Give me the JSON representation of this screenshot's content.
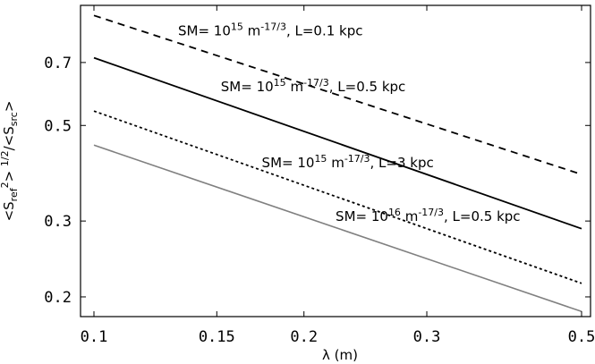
{
  "chart_data": {
    "type": "line",
    "xlabel": "λ (m)",
    "ylabel_parts": {
      "open1": "<S",
      "sub1": "ref",
      "sup1": "2",
      "mid": "> ",
      "sup2": "1/2",
      "open2": "/<S",
      "sub2": "src",
      "close": ">"
    },
    "x_scale": "log",
    "y_scale": "log",
    "xlim": [
      0.1,
      0.5
    ],
    "ylim": [
      0.18,
      0.95
    ],
    "x_ticks": [
      0.1,
      0.15,
      0.2,
      0.3,
      0.5
    ],
    "x_tick_labels": [
      "0.1",
      "0.15",
      "0.2",
      "0.3",
      "0.5"
    ],
    "y_ticks": [
      0.2,
      0.3,
      0.5,
      0.7
    ],
    "y_tick_labels": [
      "0.2",
      "0.3",
      "0.5",
      "0.7"
    ],
    "grid": false,
    "series": [
      {
        "x": [
          0.1,
          0.5
        ],
        "y": [
          0.9,
          0.385
        ],
        "color": "#000000",
        "dash": "8,6",
        "annotation": {
          "pre": "SM= 10",
          "sup1": "15",
          "mid": " m",
          "sup2": "-17/3",
          "post": ", L=0.1 kpc",
          "x": 0.132,
          "y": 0.81
        }
      },
      {
        "x": [
          0.1,
          0.5
        ],
        "y": [
          0.718,
          0.288
        ],
        "color": "#000000",
        "dash": "",
        "annotation": {
          "pre": "SM= 10",
          "sup1": "15",
          "mid": " m",
          "sup2": "-17/3",
          "post": ", L=0.5 kpc",
          "x": 0.152,
          "y": 0.6
        }
      },
      {
        "x": [
          0.1,
          0.5
        ],
        "y": [
          0.54,
          0.215
        ],
        "color": "#000000",
        "dash": "3,3",
        "annotation": {
          "pre": "SM= 10",
          "sup1": "15",
          "mid": " m",
          "sup2": "-17/3",
          "post": ", L=3 kpc",
          "x": 0.174,
          "y": 0.4
        }
      },
      {
        "x": [
          0.1,
          0.5
        ],
        "y": [
          0.45,
          0.185
        ],
        "color": "#808080",
        "dash": "",
        "annotation": {
          "pre": "SM= 10",
          "sup1": "16",
          "mid": " m",
          "sup2": "-17/3",
          "post": ", L=0.5 kpc",
          "x": 0.222,
          "y": 0.3
        }
      }
    ]
  }
}
